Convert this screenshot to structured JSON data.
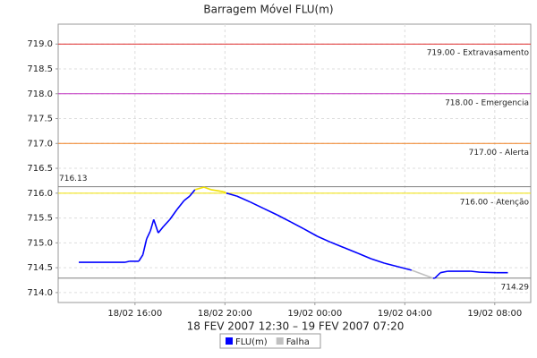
{
  "chart_data": {
    "type": "line",
    "title": "Barragem Móvel FLU(m)",
    "x_label": "18 FEV 2007 12:30 – 19 FEV 2007 07:20",
    "xlim": [
      "2007-02-18 12:35",
      "2007-02-19 09:36"
    ],
    "xticks": [
      {
        "value": "2007-02-18 16:00",
        "label": "18/02 16:00"
      },
      {
        "value": "2007-02-18 20:00",
        "label": "18/02 20:00"
      },
      {
        "value": "2007-02-19 00:00",
        "label": "19/02 00:00"
      },
      {
        "value": "2007-02-19 04:00",
        "label": "19/02 04:00"
      },
      {
        "value": "2007-02-19 08:00",
        "label": "19/02 08:00"
      }
    ],
    "ylim": [
      713.8,
      719.4
    ],
    "yticks": [
      {
        "value": 714,
        "label": "714.0"
      },
      714.5,
      {
        "value": 715,
        "label": "715.0"
      },
      715.5,
      {
        "value": 716,
        "label": "716.0"
      },
      716.5,
      {
        "value": 717,
        "label": "717.0"
      },
      717.5,
      {
        "value": 718,
        "label": "718.0"
      },
      718.5,
      {
        "value": 719,
        "label": "719.0"
      }
    ],
    "grid": true,
    "alert_threshold": 716,
    "alert_color": "#f0e000",
    "series": [
      {
        "name": "FLU(m)",
        "color": "#0000ff",
        "x": [
          "2007-02-18 13:30",
          "2007-02-18 15:34",
          "2007-02-18 15:46",
          "2007-02-18 16:10",
          "2007-02-18 16:21",
          "2007-02-18 16:31",
          "2007-02-18 16:41",
          "2007-02-18 16:50",
          "2007-02-18 17:02",
          "2007-02-18 17:16",
          "2007-02-18 17:33",
          "2007-02-18 17:52",
          "2007-02-18 18:11",
          "2007-02-18 18:26",
          "2007-02-18 18:40",
          "2007-02-18 19:04",
          "2007-02-18 19:23",
          "2007-02-18 19:56",
          "2007-02-18 20:04",
          "2007-02-18 20:32",
          "2007-02-18 21:08",
          "2007-02-18 21:44",
          "2007-02-18 22:20",
          "2007-02-18 22:56",
          "2007-02-18 23:31",
          "2007-02-19 00:07",
          "2007-02-19 00:43",
          "2007-02-19 01:19",
          "2007-02-19 01:55",
          "2007-02-19 02:30",
          "2007-02-19 03:06",
          "2007-02-19 03:42",
          "2007-02-19 04:18",
          "2007-02-19 04:45",
          "2007-02-19 05:15",
          "2007-02-19 05:20",
          "2007-02-19 05:35",
          "2007-02-19 05:55",
          "2007-02-19 06:55",
          "2007-02-19 07:20",
          "2007-02-19 08:05",
          "2007-02-19 08:35"
        ],
        "values": [
          714.61,
          714.61,
          714.63,
          714.63,
          714.76,
          715.08,
          715.24,
          715.47,
          715.2,
          715.33,
          715.47,
          715.67,
          715.85,
          715.94,
          716.07,
          716.12,
          716.07,
          716.03,
          716.0,
          715.94,
          715.82,
          715.69,
          715.56,
          715.42,
          715.28,
          715.13,
          715.01,
          714.9,
          714.79,
          714.68,
          714.59,
          714.52,
          714.45,
          null,
          714.29,
          714.29,
          714.4,
          714.43,
          714.43,
          714.41,
          714.4,
          714.4
        ]
      },
      {
        "name": "Falha",
        "color": "#c0c0c0",
        "x": [
          "2007-02-19 04:18",
          "2007-02-19 05:15"
        ],
        "values": [
          714.45,
          714.29
        ]
      }
    ],
    "reference_lines": [
      {
        "value": 719,
        "label": "719.00 - Extravasamento",
        "color": "#e03030",
        "side": "right"
      },
      {
        "value": 718,
        "label": "718.00 - Emergencia",
        "color": "#c030c0",
        "side": "right"
      },
      {
        "value": 717,
        "label": "717.00 - Alerta",
        "color": "#f08020",
        "side": "right"
      },
      {
        "value": 716,
        "label": "716.00 - Atenção",
        "color": "#f0e000",
        "side": "right"
      },
      {
        "value": 716.13,
        "label": "716.13",
        "color": "#808080",
        "side": "left"
      },
      {
        "value": 714.29,
        "label": "714.29",
        "color": "#808080",
        "side": "right"
      }
    ]
  }
}
